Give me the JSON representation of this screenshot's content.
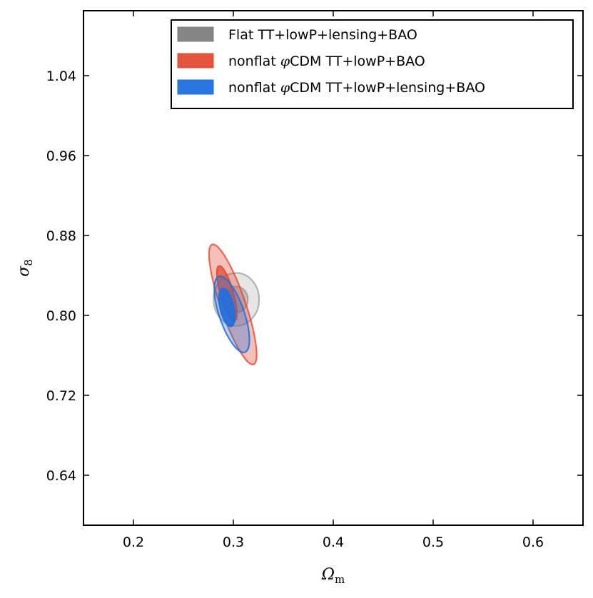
{
  "chart_data": {
    "type": "contour",
    "xlabel": "Ω",
    "xlabel_sub": "m",
    "ylabel": "σ",
    "ylabel_sub": "8",
    "xlim": [
      0.15,
      0.65
    ],
    "ylim": [
      0.59,
      1.105
    ],
    "x_ticks": [
      0.2,
      0.3,
      0.4,
      0.5,
      0.6
    ],
    "x_tick_labels": [
      "0.2",
      "0.3",
      "0.4",
      "0.5",
      "0.6"
    ],
    "y_ticks": [
      0.64,
      0.72,
      0.8,
      0.88,
      0.96,
      1.04
    ],
    "y_tick_labels": [
      "0.64",
      "0.72",
      "0.80",
      "0.88",
      "0.96",
      "1.04"
    ],
    "legend_position": "top-right",
    "legend": [
      {
        "label": "Flat TT+lowP+lensing+BAO",
        "color": "#7f7f7f"
      },
      {
        "label_pre": "nonflat ",
        "label_phi": "φ",
        "label_post": "CDM TT+lowP+BAO",
        "color": "#e24a33"
      },
      {
        "label_pre": "nonflat ",
        "label_phi": "φ",
        "label_post": "CDM TT+lowP+lensing+BAO",
        "color": "#1f6fde"
      }
    ],
    "series": [
      {
        "name": "Flat TT+lowP+lensing+BAO",
        "color": "#888888",
        "center": [
          0.303,
          0.816
        ],
        "contours": [
          {
            "level": "2sigma",
            "semi_x": 0.0228,
            "semi_y": 0.0265,
            "angle_deg": 0,
            "fill_opacity": 0.22,
            "stroke_opacity": 0.6
          },
          {
            "level": "1sigma",
            "semi_x": 0.0115,
            "semi_y": 0.013,
            "angle_deg": 0,
            "fill_opacity": 0.4,
            "stroke_opacity": 0.6
          }
        ]
      },
      {
        "name": "nonflat φCDM TT+lowP+BAO",
        "color": "#e24a33",
        "center": [
          0.2995,
          0.811
        ],
        "contours": [
          {
            "level": "2sigma",
            "semi_x": 0.0125,
            "semi_y": 0.0635,
            "angle_deg": -19,
            "fill_opacity": 0.35,
            "stroke_opacity": 0.8
          },
          {
            "level": "1sigma",
            "semi_x": 0.0065,
            "semi_y": 0.0285,
            "angle_deg": -16,
            "fill_opacity": 0.75,
            "stroke_opacity": 0.9
          }
        ],
        "inner_center": [
          0.2935,
          0.822
        ]
      },
      {
        "name": "nonflat φCDM TT+lowP+lensing+BAO",
        "color": "#1f6fde",
        "center": [
          0.2985,
          0.801
        ],
        "contours": [
          {
            "level": "2sigma",
            "semi_x": 0.0125,
            "semi_y": 0.04,
            "angle_deg": -19,
            "fill_opacity": 0.32,
            "stroke_opacity": 0.85
          },
          {
            "level": "1sigma",
            "semi_x": 0.0068,
            "semi_y": 0.0195,
            "angle_deg": -13,
            "fill_opacity": 0.9,
            "stroke_opacity": 0.9
          }
        ],
        "inner_center": [
          0.2935,
          0.808
        ]
      }
    ]
  }
}
